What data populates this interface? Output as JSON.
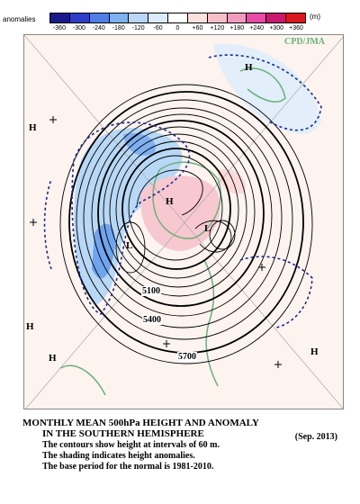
{
  "legend": {
    "title": "anomalies",
    "unit": "(m)",
    "labels": [
      "-360",
      "-300",
      "-240",
      "-180",
      "-120",
      "-60",
      "0",
      "+60",
      "+120",
      "+180",
      "+240",
      "+300",
      "+360"
    ],
    "colors": [
      "#1a1a8c",
      "#2d3fc8",
      "#4f7fe6",
      "#7fb0f0",
      "#b8d8f6",
      "#dcecfa",
      "#ffffff",
      "#fbe2dc",
      "#f7c0c8",
      "#f29bbe",
      "#e84aa8",
      "#c81a6e",
      "#d81820"
    ]
  },
  "map": {
    "credit": "CPD/JMA",
    "contour_labels": [
      "5100",
      "5400",
      "5700"
    ],
    "high_markers": [
      {
        "label": "H",
        "at": "top-center"
      },
      {
        "label": "H",
        "at": "left-upper"
      },
      {
        "label": "H",
        "at": "left-lower"
      },
      {
        "label": "H",
        "at": "bottom-left"
      },
      {
        "label": "H",
        "at": "bottom-right"
      },
      {
        "label": "H",
        "at": "center-pole"
      }
    ],
    "low_markers": [
      {
        "label": "L",
        "at": "center-left"
      },
      {
        "label": "L",
        "at": "center-right"
      }
    ]
  },
  "caption": {
    "title_line1": "MONTHLY MEAN 500hPa HEIGHT AND ANOMALY",
    "title_line2": "IN THE SOUTHERN HEMISPHERE",
    "period": "(Sep. 2013)",
    "note1": "The contours show height at intervals of 60 m.",
    "note2": "The shading indicates height anomalies.",
    "note3": "The base period for the normal is 1981-2010."
  }
}
